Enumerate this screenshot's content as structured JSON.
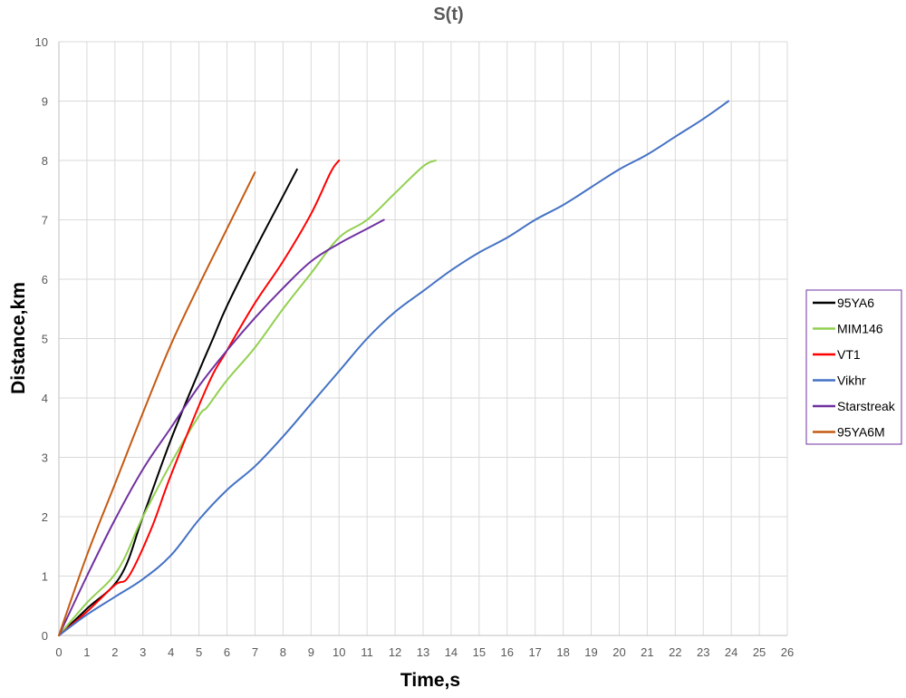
{
  "chart_data": {
    "type": "line",
    "title": "S(t)",
    "xlabel": "Time,s",
    "ylabel": "Distance,km",
    "xlim": [
      0,
      26
    ],
    "ylim": [
      0,
      10
    ],
    "x_ticks": [
      0,
      1,
      2,
      3,
      4,
      5,
      6,
      7,
      8,
      9,
      10,
      11,
      12,
      13,
      14,
      15,
      16,
      17,
      18,
      19,
      20,
      21,
      22,
      23,
      24,
      25,
      26
    ],
    "y_ticks": [
      0,
      1,
      2,
      3,
      4,
      5,
      6,
      7,
      8,
      9,
      10
    ],
    "grid": true,
    "legend_position": "right",
    "series": [
      {
        "name": "95YA6",
        "color": "#000000",
        "points": [
          [
            0,
            0
          ],
          [
            1,
            0.45
          ],
          [
            2.2,
            1.0
          ],
          [
            3,
            2.0
          ],
          [
            4,
            3.3
          ],
          [
            5,
            4.45
          ],
          [
            5.5,
            5.0
          ],
          [
            6,
            5.55
          ],
          [
            7,
            6.5
          ],
          [
            8,
            7.4
          ],
          [
            8.5,
            7.85
          ]
        ]
      },
      {
        "name": "MIM146",
        "color": "#92D050",
        "points": [
          [
            0,
            0
          ],
          [
            1,
            0.55
          ],
          [
            2.1,
            1.1
          ],
          [
            3,
            2.0
          ],
          [
            4,
            2.9
          ],
          [
            5,
            3.7
          ],
          [
            5.3,
            3.85
          ],
          [
            6,
            4.3
          ],
          [
            7,
            4.85
          ],
          [
            8,
            5.5
          ],
          [
            9,
            6.1
          ],
          [
            10,
            6.7
          ],
          [
            11,
            7.0
          ],
          [
            12,
            7.45
          ],
          [
            13,
            7.9
          ],
          [
            13.45,
            8.0
          ]
        ]
      },
      {
        "name": "VT1",
        "color": "#FF0000",
        "points": [
          [
            0,
            0
          ],
          [
            1,
            0.4
          ],
          [
            2,
            0.85
          ],
          [
            2.5,
            1.0
          ],
          [
            3.3,
            1.8
          ],
          [
            4,
            2.7
          ],
          [
            5.3,
            4.2
          ],
          [
            6,
            4.8
          ],
          [
            7,
            5.6
          ],
          [
            8,
            6.3
          ],
          [
            9,
            7.1
          ],
          [
            9.7,
            7.8
          ],
          [
            10,
            8.0
          ]
        ]
      },
      {
        "name": "Vikhr",
        "color": "#4472C4",
        "points": [
          [
            0,
            0
          ],
          [
            1,
            0.35
          ],
          [
            2,
            0.65
          ],
          [
            3,
            0.95
          ],
          [
            4,
            1.35
          ],
          [
            5,
            1.95
          ],
          [
            6,
            2.45
          ],
          [
            7,
            2.85
          ],
          [
            8,
            3.35
          ],
          [
            9,
            3.9
          ],
          [
            10,
            4.45
          ],
          [
            11,
            5.0
          ],
          [
            12,
            5.45
          ],
          [
            13,
            5.8
          ],
          [
            14,
            6.15
          ],
          [
            15,
            6.45
          ],
          [
            16,
            6.7
          ],
          [
            17,
            7.0
          ],
          [
            18,
            7.25
          ],
          [
            19,
            7.55
          ],
          [
            20,
            7.85
          ],
          [
            21,
            8.1
          ],
          [
            22,
            8.4
          ],
          [
            23,
            8.7
          ],
          [
            23.9,
            9.0
          ]
        ]
      },
      {
        "name": "Starstreak",
        "color": "#7030A0",
        "points": [
          [
            0,
            0
          ],
          [
            1,
            1.0
          ],
          [
            2,
            1.95
          ],
          [
            3,
            2.8
          ],
          [
            4,
            3.5
          ],
          [
            5,
            4.2
          ],
          [
            6,
            4.8
          ],
          [
            7,
            5.35
          ],
          [
            8,
            5.85
          ],
          [
            9,
            6.3
          ],
          [
            10,
            6.6
          ],
          [
            11,
            6.85
          ],
          [
            11.6,
            7.0
          ]
        ]
      },
      {
        "name": "95YA6M",
        "color": "#C55A11",
        "points": [
          [
            0,
            0
          ],
          [
            1,
            1.35
          ],
          [
            2,
            2.55
          ],
          [
            3,
            3.75
          ],
          [
            4,
            4.9
          ],
          [
            5,
            5.9
          ],
          [
            6,
            6.85
          ],
          [
            7,
            7.8
          ]
        ]
      }
    ]
  }
}
